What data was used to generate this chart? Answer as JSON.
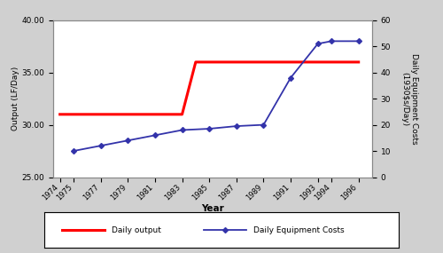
{
  "output_years": [
    1974,
    1975,
    1977,
    1979,
    1981,
    1983,
    1983.5,
    1984,
    1985,
    1987,
    1989,
    1991,
    1993,
    1994,
    1996
  ],
  "output_values": [
    31.0,
    31.0,
    31.0,
    31.0,
    31.0,
    31.0,
    33.5,
    36.0,
    36.0,
    36.0,
    36.0,
    36.0,
    36.0,
    36.0,
    36.0
  ],
  "cost_years": [
    1975,
    1977,
    1979,
    1981,
    1983,
    1985,
    1987,
    1989,
    1991,
    1993,
    1994,
    1996
  ],
  "cost_right_values": [
    10,
    12,
    14,
    16,
    18,
    18.5,
    19.5,
    20,
    38,
    51,
    52,
    52
  ],
  "left_ylim": [
    25.0,
    40.0
  ],
  "left_yticks": [
    25.0,
    30.0,
    35.0,
    40.0
  ],
  "right_ylim": [
    0,
    60
  ],
  "right_yticks": [
    0,
    10,
    20,
    30,
    40,
    50,
    60
  ],
  "xlim": [
    1973.5,
    1997
  ],
  "xticks": [
    1974,
    1975,
    1977,
    1979,
    1981,
    1983,
    1985,
    1987,
    1989,
    1991,
    1993,
    1994,
    1996
  ],
  "xlabel": "Year",
  "left_ylabel": "Output (LF/Day)",
  "right_ylabel": "Daily Equipment Costs\n(1930$s/Day)",
  "output_color": "#ff0000",
  "cost_color": "#3333aa",
  "output_linewidth": 2.2,
  "cost_linewidth": 1.3,
  "legend_output": "Daily output",
  "legend_cost": "Daily Equipment Costs",
  "bg_color": "#d0d0d0",
  "plot_bg_color": "#ffffff",
  "marker_style": "D",
  "marker_size": 3
}
